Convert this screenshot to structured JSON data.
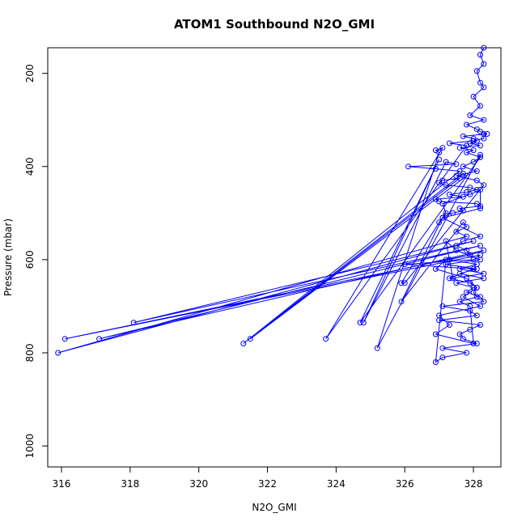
{
  "chart_data": {
    "type": "line",
    "title": "ATOM1 Southbound N2O_GMI",
    "xlabel": "N2O_GMI",
    "ylabel": "Pressure (mbar)",
    "xlim": [
      315.6,
      328.8
    ],
    "ylim": [
      1045,
      145
    ],
    "y_reversed": true,
    "xticks": [
      316,
      318,
      320,
      322,
      324,
      326,
      328
    ],
    "yticks": [
      200,
      400,
      600,
      800,
      1000
    ],
    "grid": false,
    "legend": "none",
    "marker": "open-circle",
    "series": [
      {
        "color": "#0000ff",
        "x": [
          328.3,
          328.2,
          328.3,
          328.1,
          328.2,
          328.3,
          328.0,
          328.2,
          327.9,
          328.3,
          327.8,
          328.1,
          328.2,
          328.4,
          327.7,
          328.0,
          328.1,
          327.9,
          328.2,
          327.6,
          328.0,
          327.8,
          328.2,
          328.0,
          327.7,
          328.1,
          327.5,
          328.1,
          328.3,
          326.0,
          325.9,
          327.0,
          327.2,
          327.1,
          327.9,
          328.2,
          328.2,
          327.1,
          328.2,
          327.7,
          327.5,
          327.8,
          327.9,
          327.3,
          328.1,
          327.6,
          328.3,
          327.4,
          327.2,
          327.5,
          328.2,
          327.2,
          328.1,
          327.6,
          328.3,
          327.5,
          328.0,
          327.8,
          328.2,
          328.3,
          327.1,
          327.9,
          328.1,
          327.0,
          328.2,
          327.9,
          327.6,
          327.7,
          328.1,
          327.1,
          327.8,
          327.1,
          326.9,
          327.2,
          326.9,
          327.8,
          328.1,
          327.7,
          328.2,
          327.0,
          327.3,
          326.9,
          328.0,
          327.9,
          327.6,
          328.1,
          328.0,
          328.1,
          327.9,
          327.3,
          328.0,
          326.0,
          328.0,
          328.2,
          316.1,
          327.9,
          328.3,
          317.1,
          328.2,
          318.1,
          328.0,
          315.9,
          327.8,
          327.5,
          327.8,
          327.7,
          325.9,
          327.1,
          327.2,
          327.4,
          327.7,
          327.6,
          328.2,
          328.1,
          327.0,
          326.9,
          327.7,
          327.3,
          327.8,
          328.1,
          327.9,
          327.2,
          327.0,
          327.1,
          327.6,
          321.5,
          327.8,
          327.7,
          321.3,
          327.6,
          326.9,
          326.1,
          327.5,
          327.2,
          324.8,
          327.0,
          324.7,
          328.2,
          328.2,
          325.2,
          327.0,
          326.9,
          327.1,
          323.7,
          327.8,
          327.3,
          328.0,
          328.3,
          328.3
        ],
        "y": [
          145,
          160,
          180,
          195,
          220,
          230,
          250,
          270,
          290,
          300,
          310,
          320,
          325,
          330,
          335,
          340,
          345,
          350,
          355,
          360,
          365,
          370,
          380,
          390,
          400,
          410,
          420,
          430,
          440,
          650,
          650,
          520,
          500,
          480,
          460,
          450,
          490,
          510,
          550,
          560,
          570,
          580,
          590,
          600,
          610,
          620,
          630,
          640,
          560,
          580,
          600,
          610,
          620,
          630,
          640,
          650,
          660,
          670,
          680,
          690,
          700,
          710,
          720,
          730,
          740,
          750,
          760,
          770,
          780,
          790,
          800,
          810,
          820,
          600,
          620,
          640,
          660,
          680,
          700,
          720,
          740,
          760,
          780,
          700,
          690,
          680,
          670,
          660,
          650,
          640,
          620,
          610,
          600,
          590,
          770,
          590,
          580,
          770,
          570,
          735,
          560,
          800,
          550,
          540,
          530,
          520,
          690,
          510,
          505,
          500,
          495,
          490,
          485,
          480,
          475,
          470,
          465,
          460,
          455,
          450,
          445,
          440,
          435,
          430,
          425,
          770,
          420,
          415,
          780,
          410,
          405,
          400,
          395,
          390,
          735,
          385,
          735,
          380,
          375,
          790,
          370,
          365,
          360,
          770,
          355,
          350,
          345,
          340,
          330
        ]
      }
    ]
  }
}
